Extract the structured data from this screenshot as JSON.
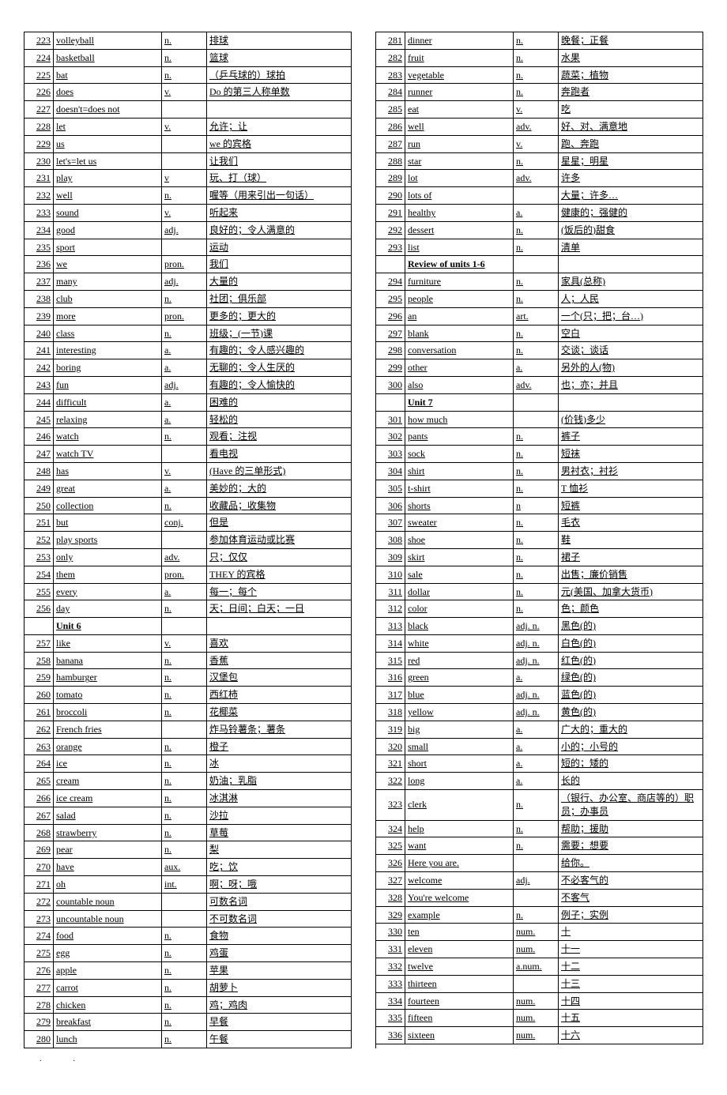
{
  "left": [
    {
      "n": "223",
      "w": "volleyball",
      "p": "n.",
      "d": "排球"
    },
    {
      "n": "224",
      "w": "basketball",
      "p": "n.",
      "d": "篮球"
    },
    {
      "n": "225",
      "w": "bat",
      "p": "n.",
      "d": "（乒乓球的）球拍"
    },
    {
      "n": "226",
      "w": "does",
      "p": "v.",
      "d": "Do 的第三人称单数"
    },
    {
      "n": "227",
      "w": "doesn't=does not",
      "p": "",
      "d": ""
    },
    {
      "n": "228",
      "w": "let",
      "p": "v.",
      "d": "允许；让"
    },
    {
      "n": "229",
      "w": "us",
      "p": "",
      "d": "we 的宾格"
    },
    {
      "n": "230",
      "w": "let's=let us",
      "p": "",
      "d": "让我们"
    },
    {
      "n": "231",
      "w": "play",
      "p": "v",
      "d": "玩、打（球）"
    },
    {
      "n": "232",
      "w": "well",
      "p": "n.",
      "d": "喔等（用来引出一句话）"
    },
    {
      "n": "233",
      "w": "sound",
      "p": "v.",
      "d": "听起来"
    },
    {
      "n": "234",
      "w": "good",
      "p": "adj.",
      "d": "良好的；令人满意的"
    },
    {
      "n": "235",
      "w": "sport",
      "p": "",
      "d": "运动"
    },
    {
      "n": "236",
      "w": "we",
      "p": "pron.",
      "d": "我们"
    },
    {
      "n": "237",
      "w": "many",
      "p": "adj.",
      "d": "大量的"
    },
    {
      "n": "238",
      "w": "club",
      "p": "n.",
      "d": "社团；俱乐部"
    },
    {
      "n": "239",
      "w": "more",
      "p": "pron.",
      "d": "更多的；更大的"
    },
    {
      "n": "240",
      "w": "class",
      "p": "n.",
      "d": "班级；(一节)课"
    },
    {
      "n": "241",
      "w": "interesting",
      "p": "a.",
      "d": "有趣的；令人感兴趣的"
    },
    {
      "n": "242",
      "w": "boring",
      "p": "a.",
      "d": "无聊的；令人生厌的"
    },
    {
      "n": "243",
      "w": "fun",
      "p": "adj.",
      "d": "有趣的；令人愉快的"
    },
    {
      "n": "244",
      "w": "difficult",
      "p": "a.",
      "d": "困难的"
    },
    {
      "n": "245",
      "w": "relaxing",
      "p": "a.",
      "d": "轻松的"
    },
    {
      "n": "246",
      "w": "watch",
      "p": "n.",
      "d": "观看；注视"
    },
    {
      "n": "247",
      "w": "watch TV",
      "p": "",
      "d": "看电视"
    },
    {
      "n": "248",
      "w": "has",
      "p": "v.",
      "d": "(Have 的三单形式)"
    },
    {
      "n": "249",
      "w": "great",
      "p": "a.",
      "d": "美妙的；大的"
    },
    {
      "n": "250",
      "w": "collection",
      "p": "n.",
      "d": "收藏品；收集物"
    },
    {
      "n": "251",
      "w": "but",
      "p": "conj.",
      "d": "但是"
    },
    {
      "n": "252",
      "w": "play sports",
      "p": "",
      "d": "参加体育运动或比赛"
    },
    {
      "n": "253",
      "w": "only",
      "p": "adv.",
      "d": "只；仅仅"
    },
    {
      "n": "254",
      "w": "them",
      "p": "pron.",
      "d": "THEY 的宾格"
    },
    {
      "n": "255",
      "w": "every",
      "p": "a.",
      "d": "每一；每个"
    },
    {
      "n": "256",
      "w": "day",
      "p": "n.",
      "d": "天；日间；白天；一日"
    },
    {
      "n": "",
      "w": "Unit 6",
      "p": "",
      "d": "",
      "section": true
    },
    {
      "n": "257",
      "w": "like",
      "p": "v.",
      "d": "喜欢"
    },
    {
      "n": "258",
      "w": "banana",
      "p": "n.",
      "d": "香蕉"
    },
    {
      "n": "259",
      "w": "hamburger",
      "p": "n.",
      "d": "汉堡包"
    },
    {
      "n": "260",
      "w": "tomato",
      "p": "n.",
      "d": "西红柿"
    },
    {
      "n": "261",
      "w": "broccoli",
      "p": "n.",
      "d": "花椰菜"
    },
    {
      "n": "262",
      "w": "French  fries",
      "p": "",
      "d": "炸马铃薯条；薯条"
    },
    {
      "n": "263",
      "w": "orange",
      "p": "n.",
      "d": "橙子"
    },
    {
      "n": "264",
      "w": "ice",
      "p": "n.",
      "d": "冰"
    },
    {
      "n": "265",
      "w": "cream",
      "p": "n.",
      "d": "奶油；乳脂"
    },
    {
      "n": "266",
      "w": "ice cream",
      "p": "n.",
      "d": "冰淇淋"
    },
    {
      "n": "267",
      "w": "salad",
      "p": "n.",
      "d": "沙拉"
    },
    {
      "n": "268",
      "w": "strawberry",
      "p": "n.",
      "d": "草莓"
    },
    {
      "n": "269",
      "w": "pear",
      "p": "n.",
      "d": "梨"
    },
    {
      "n": "270",
      "w": "have",
      "p": "aux.",
      "d": "吃；饮"
    },
    {
      "n": "271",
      "w": "oh",
      "p": "int.",
      "d": "啊；呀；哦"
    },
    {
      "n": "272",
      "w": "countable noun",
      "p": "",
      "d": "可数名词"
    },
    {
      "n": "273",
      "w": "uncountable noun",
      "p": "",
      "d": "不可数名词"
    },
    {
      "n": "274",
      "w": "food",
      "p": "n.",
      "d": "食物"
    },
    {
      "n": "275",
      "w": "egg",
      "p": "n.",
      "d": "鸡蛋"
    },
    {
      "n": "276",
      "w": "apple",
      "p": "n.",
      "d": "苹果"
    },
    {
      "n": "277",
      "w": "carrot",
      "p": "n.",
      "d": "胡萝卜"
    },
    {
      "n": "278",
      "w": "chicken",
      "p": "n.",
      "d": "鸡；鸡肉"
    },
    {
      "n": "279",
      "w": "breakfast",
      "p": "n.",
      "d": "早餐"
    },
    {
      "n": "280",
      "w": "lunch",
      "p": "n.",
      "d": "午餐"
    }
  ],
  "right": [
    {
      "n": "281",
      "w": "dinner",
      "p": "n.",
      "d": "晚餐；正餐"
    },
    {
      "n": "282",
      "w": "fruit",
      "p": "n.",
      "d": "水果"
    },
    {
      "n": "283",
      "w": "vegetable",
      "p": "n.",
      "d": "蔬菜；植物"
    },
    {
      "n": "284",
      "w": "runner",
      "p": "n.",
      "d": "奔跑者"
    },
    {
      "n": "285",
      "w": "eat",
      "p": "v.",
      "d": "吃"
    },
    {
      "n": "286",
      "w": "well",
      "p": "adv.",
      "d": "好、对、满意地"
    },
    {
      "n": "287",
      "w": "run",
      "p": "v.",
      "d": "跑、奔跑"
    },
    {
      "n": "288",
      "w": "star",
      "p": "n.",
      "d": "星星；明星"
    },
    {
      "n": "289",
      "w": "lot",
      "p": "adv.",
      "d": "许多"
    },
    {
      "n": "290",
      "w": "lots of",
      "p": "",
      "d": "大量；许多…"
    },
    {
      "n": "291",
      "w": "healthy",
      "p": "a.",
      "d": "健康的；强健的"
    },
    {
      "n": "292",
      "w": "dessert",
      "p": "n.",
      "d": "(饭后的)甜食"
    },
    {
      "n": "293",
      "w": "list",
      "p": "n.",
      "d": "清单"
    },
    {
      "n": "",
      "w": "Review of units  1-6",
      "p": "",
      "d": "",
      "section": true
    },
    {
      "n": "294",
      "w": "furniture",
      "p": "n.",
      "d": "家具(总称)"
    },
    {
      "n": "295",
      "w": "people",
      "p": "n.",
      "d": "人；人民"
    },
    {
      "n": "296",
      "w": "an",
      "p": "art.",
      "d": "一个(只；把；台…)"
    },
    {
      "n": "297",
      "w": "blank",
      "p": "n.",
      "d": "空白"
    },
    {
      "n": "298",
      "w": "conversation",
      "p": "n.",
      "d": "交谈；谈话"
    },
    {
      "n": "299",
      "w": "other",
      "p": "a.",
      "d": "另外的人(物)"
    },
    {
      "n": "300",
      "w": "also",
      "p": "adv.",
      "d": "也；亦；并且"
    },
    {
      "n": "",
      "w": "Unit 7",
      "p": "",
      "d": "",
      "section": true
    },
    {
      "n": "301",
      "w": "how much",
      "p": "",
      "d": "(价钱)多少"
    },
    {
      "n": "302",
      "w": "pants",
      "p": "n.",
      "d": "裤子"
    },
    {
      "n": "303",
      "w": "sock",
      "p": "n.",
      "d": "短袜"
    },
    {
      "n": "304",
      "w": "shirt",
      "p": "n.",
      "d": "男衬衣；衬衫"
    },
    {
      "n": "305",
      "w": "t-shirt",
      "p": "n.",
      "d": "T 恤衫"
    },
    {
      "n": "306",
      "w": "shorts",
      "p": "n",
      "d": "短裤"
    },
    {
      "n": "307",
      "w": "sweater",
      "p": "n.",
      "d": "毛衣"
    },
    {
      "n": "308",
      "w": "shoe",
      "p": "n.",
      "d": "鞋"
    },
    {
      "n": "309",
      "w": "skirt",
      "p": "n.",
      "d": "裙子"
    },
    {
      "n": "310",
      "w": "sale",
      "p": "n.",
      "d": "出售；廉价销售"
    },
    {
      "n": "311",
      "w": "dollar",
      "p": "n.",
      "d": "元(美国、加拿大货币)"
    },
    {
      "n": "312",
      "w": "color",
      "p": "n.",
      "d": "色；颜色"
    },
    {
      "n": "313",
      "w": "black",
      "p": "adj. n.",
      "d": "黑色(的)"
    },
    {
      "n": "314",
      "w": "white",
      "p": "adj. n.",
      "d": "白色(的)"
    },
    {
      "n": "315",
      "w": "red",
      "p": "adj. n.",
      "d": "红色(的)"
    },
    {
      "n": "316",
      "w": "green",
      "p": "a.",
      "d": "绿色(的)"
    },
    {
      "n": "317",
      "w": "blue",
      "p": "adj. n.",
      "d": "蓝色(的)"
    },
    {
      "n": "318",
      "w": "yellow",
      "p": "adj. n.",
      "d": "黄色(的)"
    },
    {
      "n": "319",
      "w": "big",
      "p": "a.",
      "d": "广大的；重大的"
    },
    {
      "n": "320",
      "w": "small",
      "p": "a.",
      "d": "小的；小号的"
    },
    {
      "n": "321",
      "w": "short",
      "p": "a.",
      "d": "短的；矮的"
    },
    {
      "n": "322",
      "w": "long",
      "p": "a.",
      "d": "长的"
    },
    {
      "n": "323",
      "w": "clerk",
      "p": "n.",
      "d": "（银行、办公室、商店等的）职员；办事员"
    },
    {
      "n": "324",
      "w": "help",
      "p": "n.",
      "d": "帮助；援助"
    },
    {
      "n": "325",
      "w": "want",
      "p": "n.",
      "d": "需要；想要"
    },
    {
      "n": "326",
      "w": "Here you are.",
      "p": "",
      "d": "给你。"
    },
    {
      "n": "327",
      "w": "welcome",
      "p": "adj.",
      "d": "不必客气的"
    },
    {
      "n": "328",
      "w": "You're welcome",
      "p": "",
      "d": "不客气"
    },
    {
      "n": "329",
      "w": "example",
      "p": "n.",
      "d": "例子；实例"
    },
    {
      "n": "330",
      "w": "ten",
      "p": "num.",
      "d": "十"
    },
    {
      "n": "331",
      "w": "eleven",
      "p": "num.",
      "d": "十一"
    },
    {
      "n": "332",
      "w": "twelve",
      "p": "a.num.",
      "d": "十二"
    },
    {
      "n": "333",
      "w": "thirteen",
      "p": "",
      "d": "十三"
    },
    {
      "n": "334",
      "w": "fourteen",
      "p": "num.",
      "d": "十四"
    },
    {
      "n": "335",
      "w": "fifteen",
      "p": "num.",
      "d": "十五"
    },
    {
      "n": "336",
      "w": "sixteen",
      "p": "num.",
      "d": "十六"
    }
  ],
  "footer_dots": ".."
}
